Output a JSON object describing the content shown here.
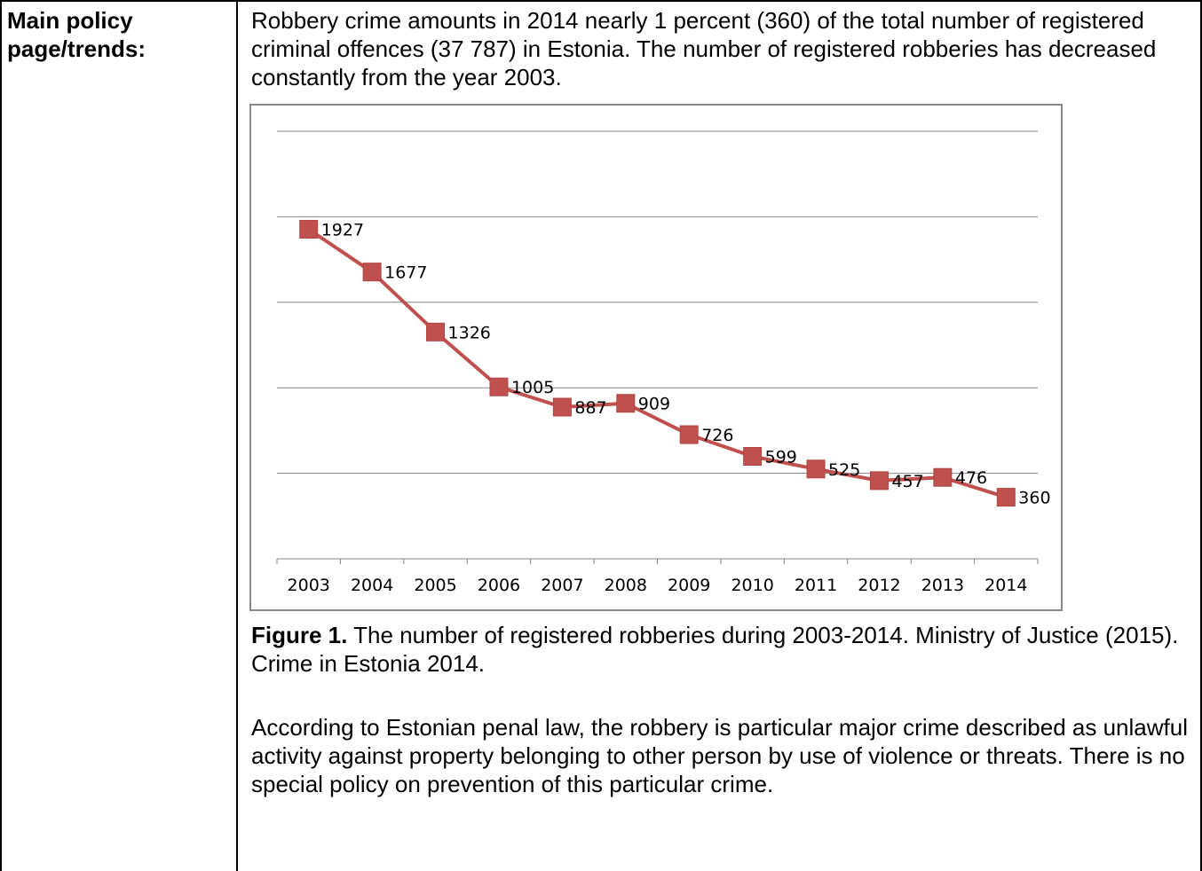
{
  "row": {
    "label": "Main policy page/trends:",
    "intro": "Robbery crime amounts in 2014 nearly 1 percent (360) of the total number of registered criminal offences (37 787) in Estonia. The number of registered robberies has decreased constantly from the year 2003.",
    "caption_bold": "Figure 1.",
    "caption_text": " The number of registered robberies during 2003-2014. Ministry of Justice (2015). Crime in Estonia 2014.",
    "body": "According to Estonian penal law, the robbery is particular major crime described as unlawful activity against property belonging to other person by use of violence or threats. There is no special policy on prevention of this particular crime."
  },
  "chart_data": {
    "type": "line",
    "title": "",
    "xlabel": "",
    "ylabel": "",
    "categories": [
      "2003",
      "2004",
      "2005",
      "2006",
      "2007",
      "2008",
      "2009",
      "2010",
      "2011",
      "2012",
      "2013",
      "2014"
    ],
    "values": [
      1927,
      1677,
      1326,
      1005,
      887,
      909,
      726,
      599,
      525,
      457,
      476,
      360
    ],
    "ylim": [
      0,
      2500
    ],
    "grid": true,
    "legend": "none",
    "series_color": "#c0504d",
    "marker": "square"
  }
}
